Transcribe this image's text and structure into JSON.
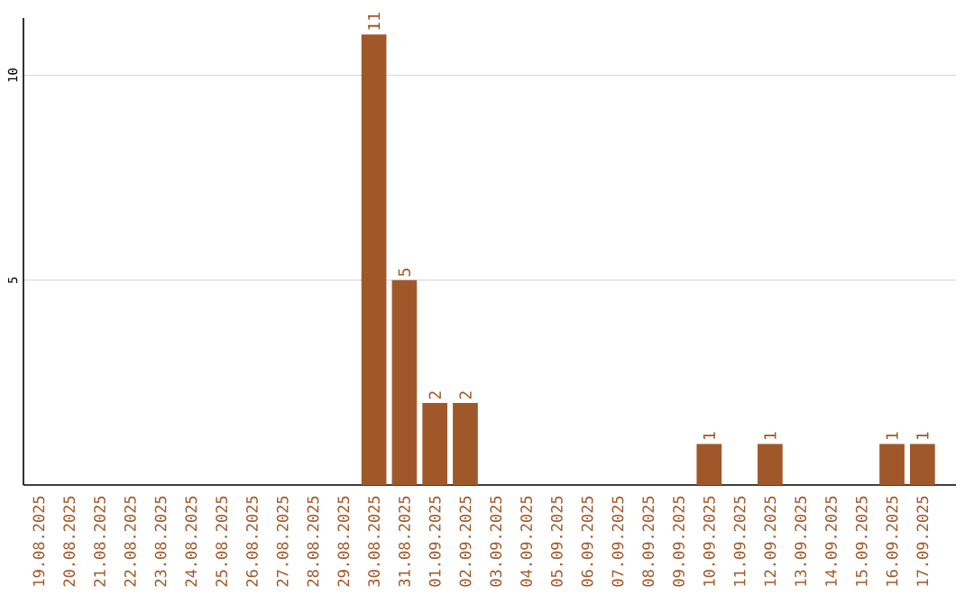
{
  "chart_data": {
    "type": "bar",
    "categories": [
      "19.08.2025",
      "20.08.2025",
      "21.08.2025",
      "22.08.2025",
      "23.08.2025",
      "24.08.2025",
      "25.08.2025",
      "26.08.2025",
      "27.08.2025",
      "28.08.2025",
      "29.08.2025",
      "30.08.2025",
      "31.08.2025",
      "01.09.2025",
      "02.09.2025",
      "03.09.2025",
      "04.09.2025",
      "05.09.2025",
      "06.09.2025",
      "07.09.2025",
      "08.09.2025",
      "09.09.2025",
      "10.09.2025",
      "11.09.2025",
      "12.09.2025",
      "13.09.2025",
      "14.09.2025",
      "15.09.2025",
      "16.09.2025",
      "17.09.2025"
    ],
    "values": [
      0,
      0,
      0,
      0,
      0,
      0,
      0,
      0,
      0,
      0,
      0,
      11,
      5,
      2,
      2,
      0,
      0,
      0,
      0,
      0,
      0,
      0,
      1,
      0,
      1,
      0,
      0,
      0,
      1,
      1
    ],
    "value_labels": [
      null,
      null,
      null,
      null,
      null,
      null,
      null,
      null,
      null,
      null,
      null,
      "11",
      "5",
      "2",
      "2",
      null,
      null,
      null,
      null,
      null,
      null,
      null,
      "1",
      null,
      "1",
      null,
      null,
      null,
      "1",
      "1"
    ],
    "color": "#a0582a",
    "ylim": [
      0,
      11.4
    ],
    "yticks": [
      5,
      10
    ],
    "grid": "y"
  }
}
